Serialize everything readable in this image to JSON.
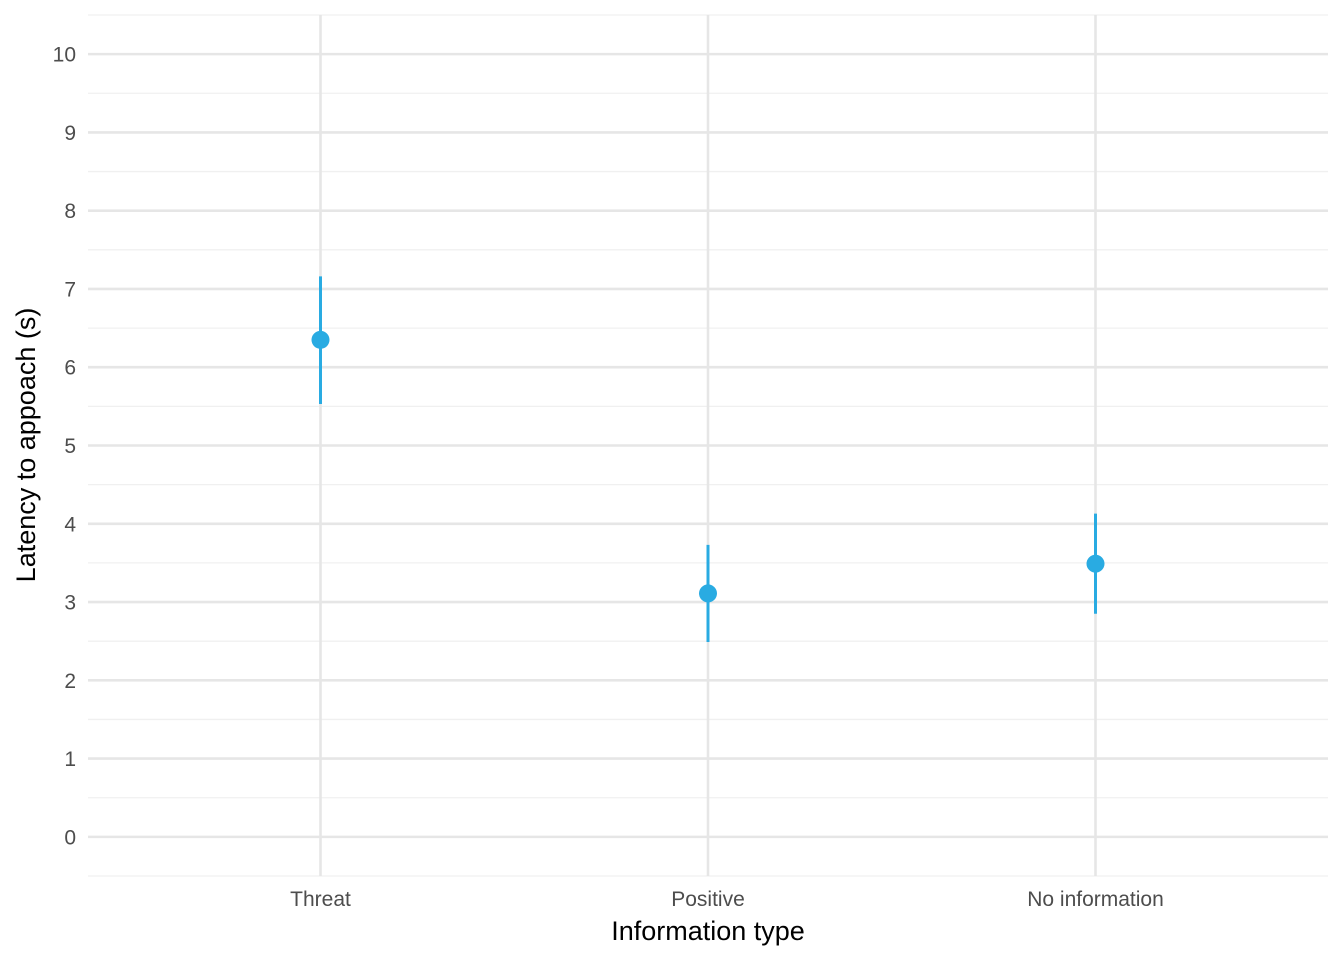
{
  "chart_data": {
    "type": "scatter",
    "subtype": "point-range",
    "title": "",
    "xlabel": "Information type",
    "ylabel": "Latency to appoach (s)",
    "categories": [
      "Threat",
      "Positive",
      "No information"
    ],
    "series": [
      {
        "values": [
          6.35,
          3.11,
          3.49
        ],
        "lower": [
          5.53,
          2.49,
          2.85
        ],
        "upper": [
          7.16,
          3.73,
          4.13
        ]
      }
    ],
    "ylim": [
      -0.5,
      10.5
    ],
    "yticks": [
      0,
      1,
      2,
      3,
      4,
      5,
      6,
      7,
      8,
      9,
      10
    ],
    "grid": true,
    "legend": "none",
    "colors": {
      "point": "#29abe2",
      "grid_major": "#e6e6e6",
      "grid_minor": "#f0f0f0",
      "tick_text": "#4d4d4d",
      "axis_title": "#000000",
      "background": "#ffffff"
    }
  }
}
